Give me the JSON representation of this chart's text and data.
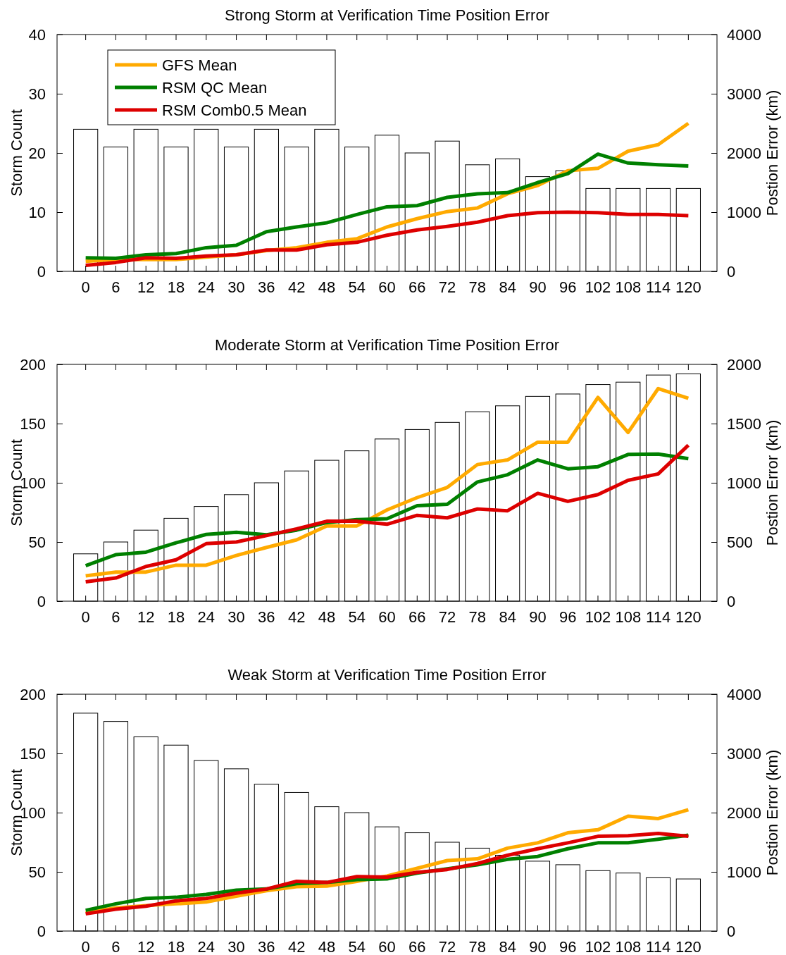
{
  "chart_data": [
    {
      "type": "bar",
      "title": "Strong Storm at Verification Time Position Error",
      "ylabel": "Storm Count",
      "y2label": "Postion Error (km)",
      "categories": [
        "0",
        "6",
        "12",
        "18",
        "24",
        "30",
        "36",
        "42",
        "48",
        "54",
        "60",
        "66",
        "72",
        "78",
        "84",
        "90",
        "96",
        "102",
        "108",
        "114",
        "120"
      ],
      "ylim": [
        0,
        40
      ],
      "yticks": [
        0,
        10,
        20,
        30,
        40
      ],
      "y2lim": [
        0,
        4000
      ],
      "y2ticks": [
        0,
        1000,
        2000,
        3000,
        4000
      ],
      "legend": "top left",
      "series": [
        {
          "color": "#ffffff",
          "values": [
            24,
            21,
            24,
            21,
            24,
            21,
            24,
            21,
            24,
            21,
            23,
            20,
            22,
            18,
            19,
            16,
            17,
            14,
            14,
            14,
            14
          ]
        },
        {
          "type": "line",
          "axis": "y2",
          "name": "GFS Mean",
          "color": "#ffaa00",
          "values": [
            170,
            200,
            200,
            200,
            240,
            280,
            350,
            400,
            490,
            550,
            750,
            890,
            1010,
            1070,
            1310,
            1450,
            1700,
            1740,
            2030,
            2140,
            2500
          ]
        },
        {
          "type": "line",
          "axis": "y2",
          "name": "RSM QC Mean",
          "color": "#008000",
          "values": [
            230,
            220,
            280,
            300,
            400,
            440,
            670,
            750,
            820,
            960,
            1090,
            1110,
            1250,
            1310,
            1330,
            1500,
            1650,
            1980,
            1830,
            1800,
            1780
          ]
        },
        {
          "type": "line",
          "axis": "y2",
          "name": "RSM Comb0.5 Mean",
          "color": "#dd0000",
          "values": [
            100,
            150,
            230,
            220,
            260,
            280,
            360,
            360,
            450,
            490,
            610,
            700,
            760,
            830,
            940,
            990,
            1000,
            990,
            960,
            960,
            940
          ]
        }
      ]
    },
    {
      "type": "bar",
      "title": "Moderate Storm at Verification Time Position Error",
      "ylabel": "Storm Count",
      "y2label": "Postion Error (km)",
      "categories": [
        "0",
        "6",
        "12",
        "18",
        "24",
        "30",
        "36",
        "42",
        "48",
        "54",
        "60",
        "66",
        "72",
        "78",
        "84",
        "90",
        "96",
        "102",
        "108",
        "114",
        "120"
      ],
      "ylim": [
        0,
        200
      ],
      "yticks": [
        0,
        50,
        100,
        150,
        200
      ],
      "y2lim": [
        0,
        2000
      ],
      "y2ticks": [
        0,
        500,
        1000,
        1500,
        2000
      ],
      "series": [
        {
          "color": "#ffffff",
          "values": [
            40,
            50,
            60,
            70,
            80,
            90,
            100,
            110,
            119,
            127,
            137,
            145,
            151,
            160,
            165,
            173,
            175,
            183,
            185,
            191,
            192
          ]
        },
        {
          "type": "line",
          "axis": "y2",
          "color": "#ffaa00",
          "values": [
            214,
            246,
            246,
            304,
            304,
            386,
            454,
            518,
            636,
            636,
            771,
            875,
            961,
            1154,
            1193,
            1343,
            1343,
            1721,
            1425,
            1796,
            1714
          ]
        },
        {
          "type": "line",
          "axis": "y2",
          "color": "#008000",
          "values": [
            300,
            393,
            414,
            493,
            564,
            582,
            561,
            600,
            664,
            689,
            696,
            807,
            818,
            1007,
            1068,
            1193,
            1118,
            1136,
            1239,
            1243,
            1204
          ]
        },
        {
          "type": "line",
          "axis": "y2",
          "color": "#dd0000",
          "values": [
            164,
            196,
            293,
            350,
            486,
            500,
            554,
            611,
            675,
            675,
            650,
            725,
            704,
            779,
            764,
            911,
            843,
            900,
            1021,
            1075,
            1318
          ]
        }
      ]
    },
    {
      "type": "bar",
      "title": "Weak Storm at Verification Time Position Error",
      "ylabel": "Storm Count",
      "y2label": "Postion Error (km)",
      "categories": [
        "0",
        "6",
        "12",
        "18",
        "24",
        "30",
        "36",
        "42",
        "48",
        "54",
        "60",
        "66",
        "72",
        "78",
        "84",
        "90",
        "96",
        "102",
        "108",
        "114",
        "120"
      ],
      "ylim": [
        0,
        200
      ],
      "yticks": [
        0,
        50,
        100,
        150,
        200
      ],
      "y2lim": [
        0,
        4000
      ],
      "y2ticks": [
        0,
        1000,
        2000,
        3000,
        4000
      ],
      "series": [
        {
          "color": "#ffffff",
          "values": [
            184,
            177,
            164,
            157,
            144,
            137,
            124,
            117,
            105,
            100,
            88,
            83,
            75,
            70,
            64,
            59,
            56,
            51,
            49,
            45,
            44
          ]
        },
        {
          "type": "line",
          "axis": "y2",
          "color": "#ffaa00",
          "values": [
            310,
            390,
            430,
            460,
            490,
            590,
            680,
            750,
            760,
            840,
            930,
            1060,
            1190,
            1220,
            1400,
            1490,
            1660,
            1710,
            1940,
            1900,
            2050
          ]
        },
        {
          "type": "line",
          "axis": "y2",
          "color": "#008000",
          "values": [
            350,
            460,
            550,
            570,
            620,
            690,
            710,
            800,
            820,
            870,
            880,
            980,
            1050,
            1120,
            1210,
            1260,
            1390,
            1490,
            1490,
            1550,
            1620
          ]
        },
        {
          "type": "line",
          "axis": "y2",
          "color": "#dd0000",
          "values": [
            290,
            370,
            420,
            510,
            550,
            640,
            710,
            840,
            820,
            920,
            910,
            990,
            1040,
            1140,
            1280,
            1390,
            1490,
            1600,
            1610,
            1650,
            1600
          ]
        }
      ]
    }
  ]
}
